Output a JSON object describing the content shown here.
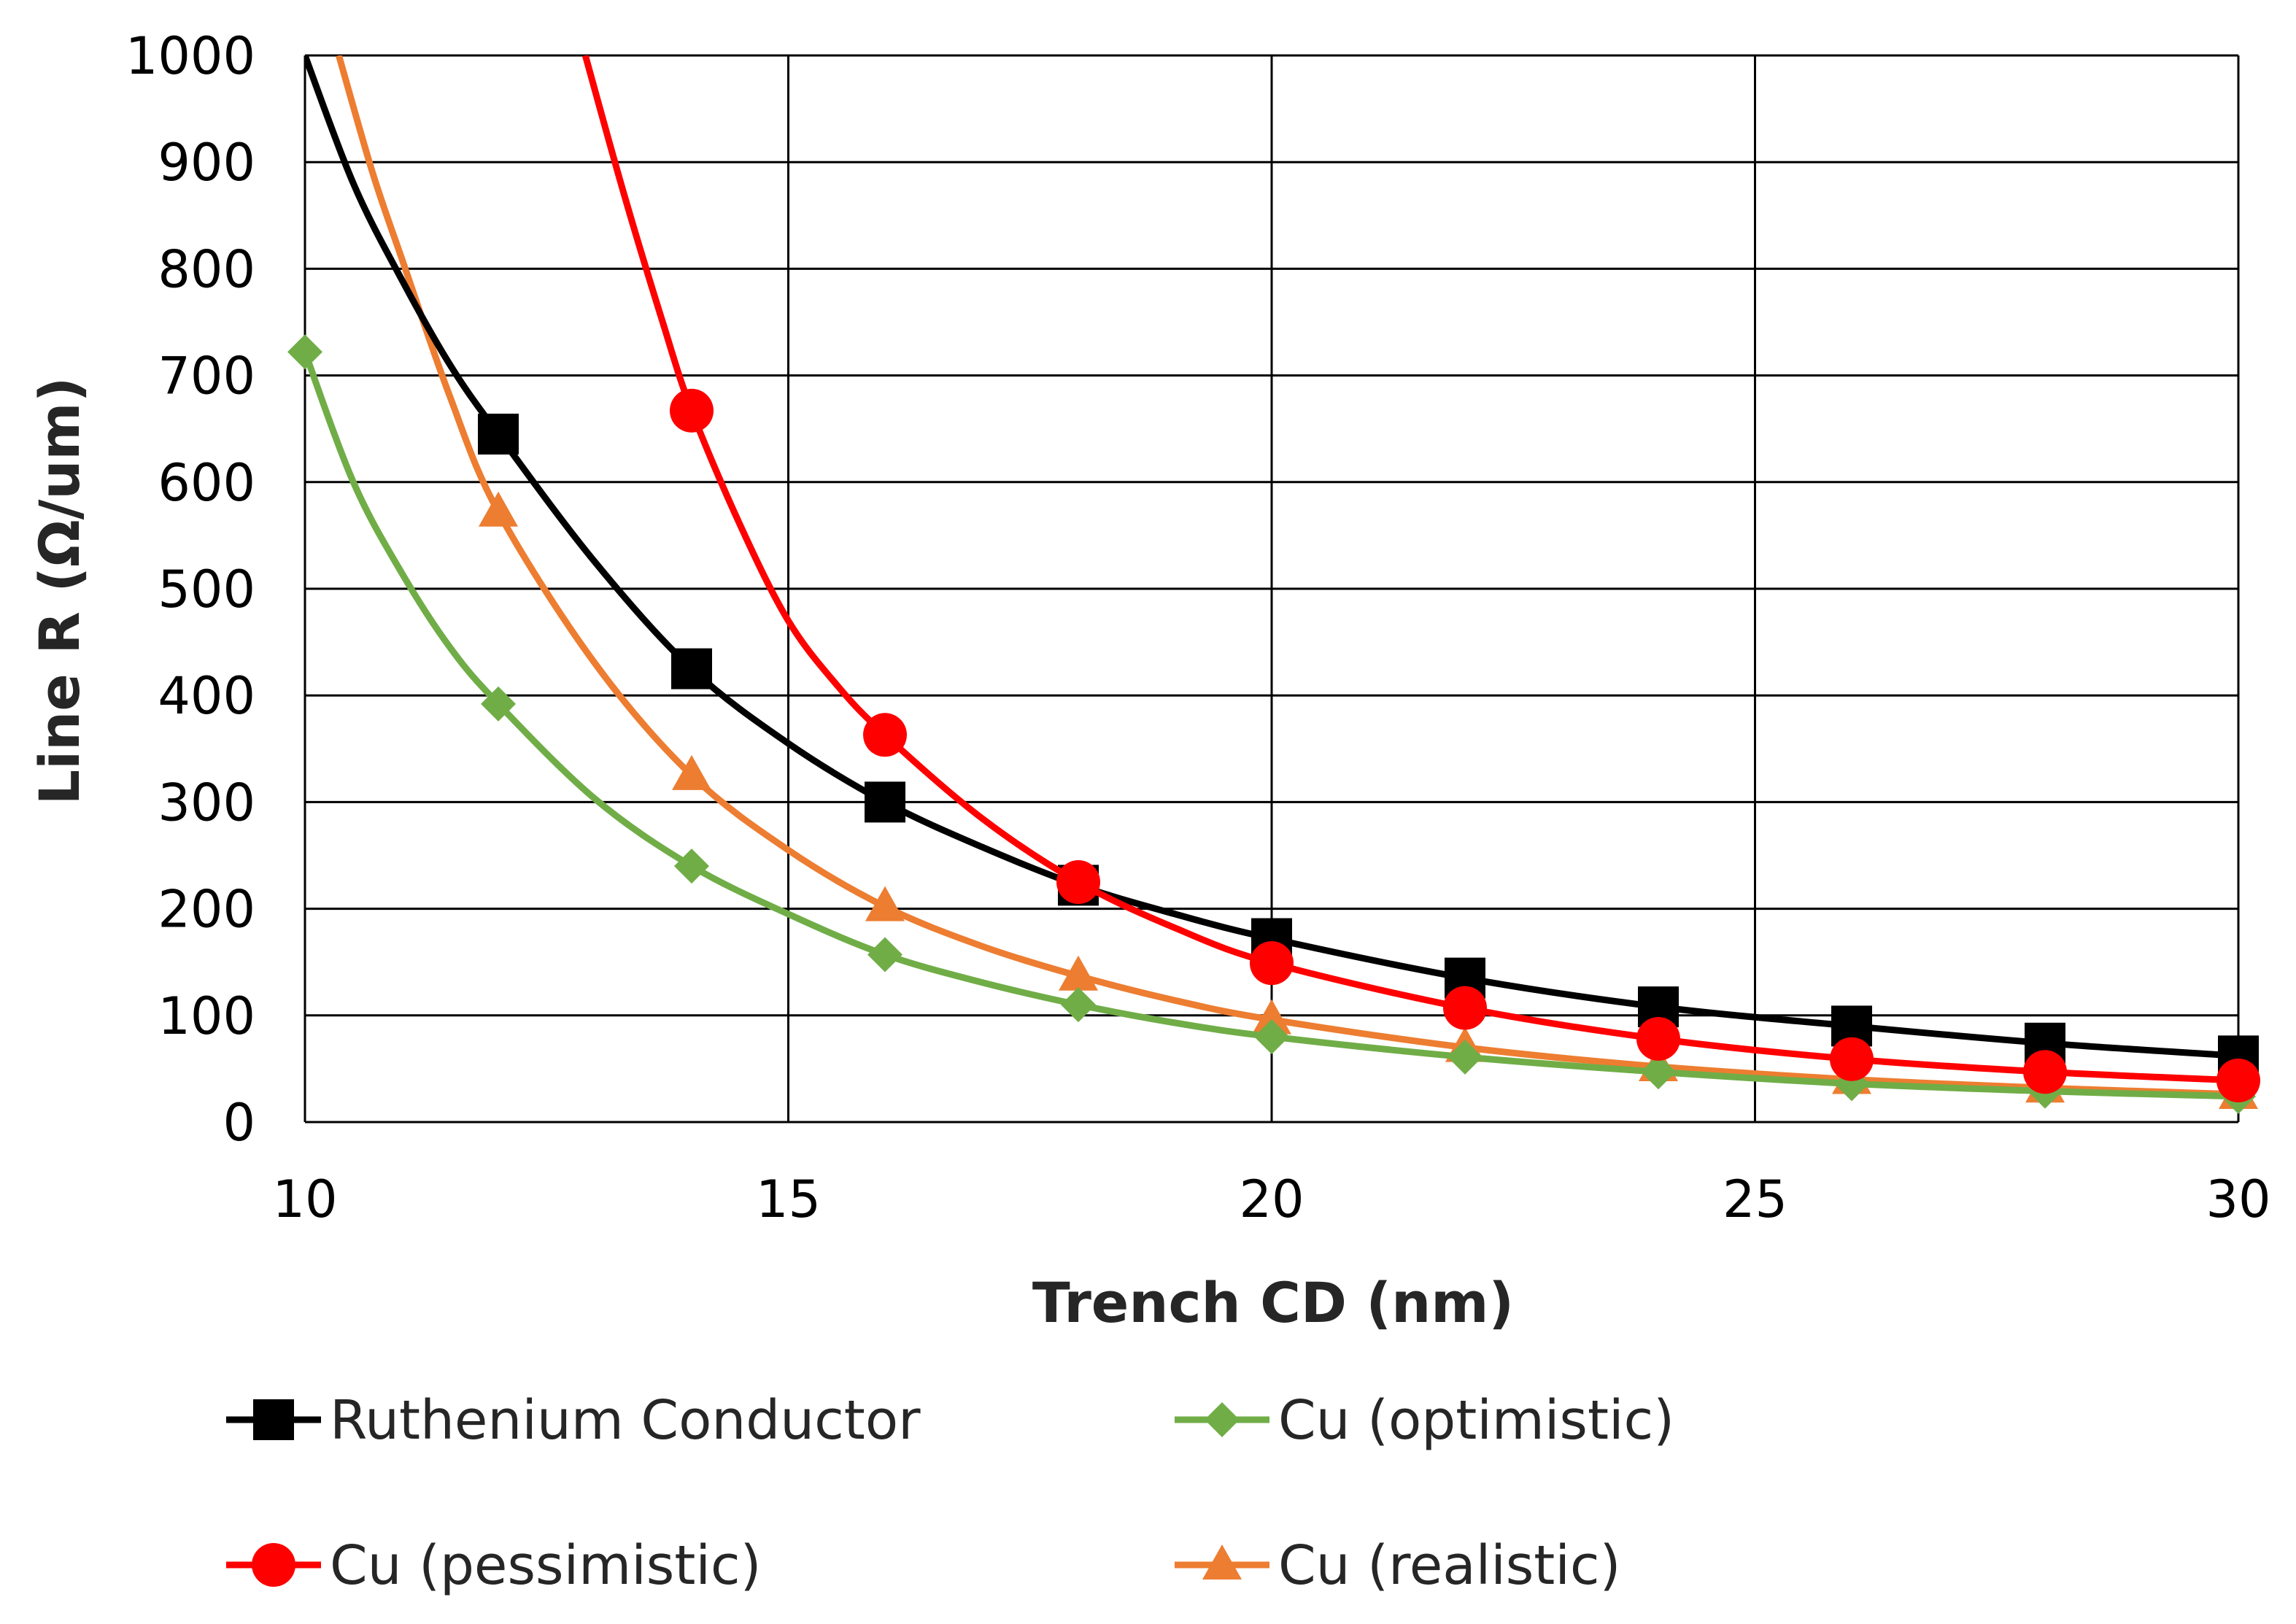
{
  "chart_data": {
    "type": "line",
    "title": "",
    "xlabel": "Trench CD (nm)",
    "ylabel": "Line R (Ω/um)",
    "xlim": [
      10,
      30
    ],
    "ylim": [
      0,
      1000
    ],
    "xticks": [
      10,
      15,
      20,
      25,
      30
    ],
    "yticks": [
      0,
      100,
      200,
      300,
      400,
      500,
      600,
      700,
      800,
      900,
      1000
    ],
    "grid": true,
    "legend_position": "bottom",
    "series": [
      {
        "name": "Ruthenium Conductor",
        "color": "#000000",
        "marker": "square",
        "x": [
          12,
          14,
          16,
          18,
          20,
          22,
          24,
          26,
          28,
          30
        ],
        "y": [
          645,
          425,
          300,
          222,
          172,
          135,
          108,
          90,
          74,
          62
        ],
        "curve_x": [
          10,
          10.5,
          11,
          11.5,
          12,
          13,
          14,
          15,
          16,
          17,
          18,
          19,
          20,
          22,
          24,
          26,
          28,
          30
        ],
        "curve_y": [
          1000,
          880,
          790,
          710,
          645,
          525,
          425,
          355,
          300,
          258,
          222,
          195,
          172,
          135,
          108,
          90,
          74,
          62
        ]
      },
      {
        "name": "Cu (optimistic)",
        "color": "#70ad47",
        "marker": "diamond",
        "x": [
          10,
          12,
          14,
          16,
          18,
          20,
          22,
          24,
          26,
          28,
          30
        ],
        "y": [
          722,
          392,
          240,
          157,
          110,
          80,
          61,
          47,
          36,
          29,
          24
        ],
        "curve_x": [
          10,
          10.5,
          11,
          11.5,
          12,
          13,
          14,
          15,
          16,
          17,
          18,
          19,
          20,
          22,
          24,
          26,
          28,
          30
        ],
        "curve_y": [
          722,
          600,
          515,
          445,
          392,
          303,
          240,
          195,
          157,
          131,
          110,
          93,
          80,
          61,
          47,
          36,
          29,
          24
        ]
      },
      {
        "name": "Cu (pessimistic)",
        "color": "#ff0000",
        "marker": "circle",
        "x": [
          14,
          16,
          18,
          20,
          22,
          24,
          26,
          28,
          30
        ],
        "y": [
          667,
          363,
          225,
          149,
          107,
          78,
          59,
          47,
          39
        ],
        "curve_x": [
          12.9,
          13.3,
          13.7,
          14,
          14.5,
          15,
          15.5,
          16,
          17,
          18,
          19,
          20,
          22,
          24,
          26,
          28,
          30
        ],
        "curve_y": [
          1000,
          870,
          750,
          667,
          560,
          470,
          410,
          363,
          285,
          225,
          182,
          149,
          107,
          78,
          59,
          47,
          39
        ]
      },
      {
        "name": "Cu (realistic)",
        "color": "#ed7d31",
        "marker": "triangle",
        "x": [
          12,
          14,
          16,
          18,
          20,
          22,
          24,
          26,
          28,
          30
        ],
        "y": [
          572,
          325,
          202,
          137,
          96,
          70,
          52,
          40,
          32,
          26
        ],
        "curve_x": [
          10.35,
          10.7,
          11,
          11.5,
          12,
          13,
          14,
          15,
          16,
          17,
          18,
          19,
          20,
          22,
          24,
          26,
          28,
          30
        ],
        "curve_y": [
          1000,
          890,
          810,
          680,
          572,
          430,
          325,
          255,
          202,
          165,
          137,
          114,
          96,
          70,
          52,
          40,
          32,
          26
        ]
      }
    ]
  }
}
